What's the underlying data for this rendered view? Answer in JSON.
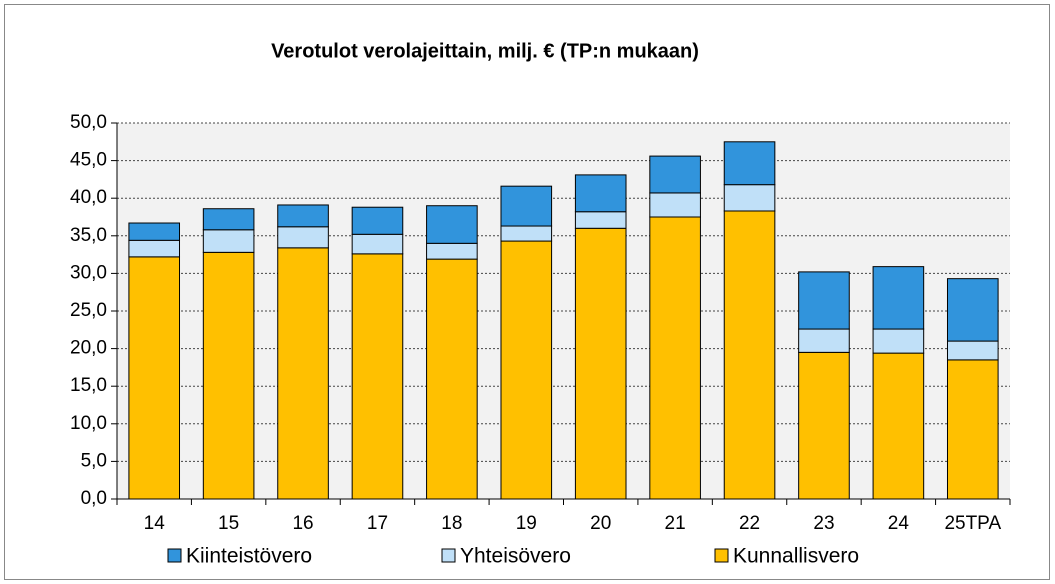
{
  "chart_data": {
    "type": "stacked_bar",
    "title": "Verotulot verolajeittain, milj. €  (TP:n mukaan)",
    "categories": [
      "14",
      "15",
      "16",
      "17",
      "18",
      "19",
      "20",
      "21",
      "22",
      "23",
      "24",
      "25TPA"
    ],
    "series": [
      {
        "name": "Kiinteistövero",
        "color": "#3194dc",
        "values": [
          2.3,
          2.8,
          2.9,
          3.6,
          5.0,
          5.3,
          4.9,
          4.9,
          5.7,
          7.6,
          8.3,
          8.3
        ]
      },
      {
        "name": "Yhteisövero",
        "color": "#c0e0f8",
        "values": [
          2.2,
          3.0,
          2.8,
          2.6,
          2.1,
          2.0,
          2.2,
          3.2,
          3.5,
          3.1,
          3.2,
          2.5
        ]
      },
      {
        "name": "Kunnallisvero",
        "color": "#ffc000",
        "values": [
          32.2,
          32.8,
          33.4,
          32.6,
          31.9,
          34.3,
          36.0,
          37.5,
          38.3,
          19.5,
          19.4,
          18.5
        ]
      }
    ],
    "ylim": [
      0,
      50
    ],
    "yticks": [
      {
        "value": 0,
        "label": "0,0"
      },
      {
        "value": 5,
        "label": "5,0"
      },
      {
        "value": 10,
        "label": "10,0"
      },
      {
        "value": 15,
        "label": "15,0"
      },
      {
        "value": 20,
        "label": "20,0"
      },
      {
        "value": 25,
        "label": "25,0"
      },
      {
        "value": 30,
        "label": "30,0"
      },
      {
        "value": 35,
        "label": "35,0"
      },
      {
        "value": 40,
        "label": "40,0"
      },
      {
        "value": 45,
        "label": "45,0"
      },
      {
        "value": 50,
        "label": "50,0"
      }
    ],
    "grid": true,
    "legend": "bottom"
  }
}
